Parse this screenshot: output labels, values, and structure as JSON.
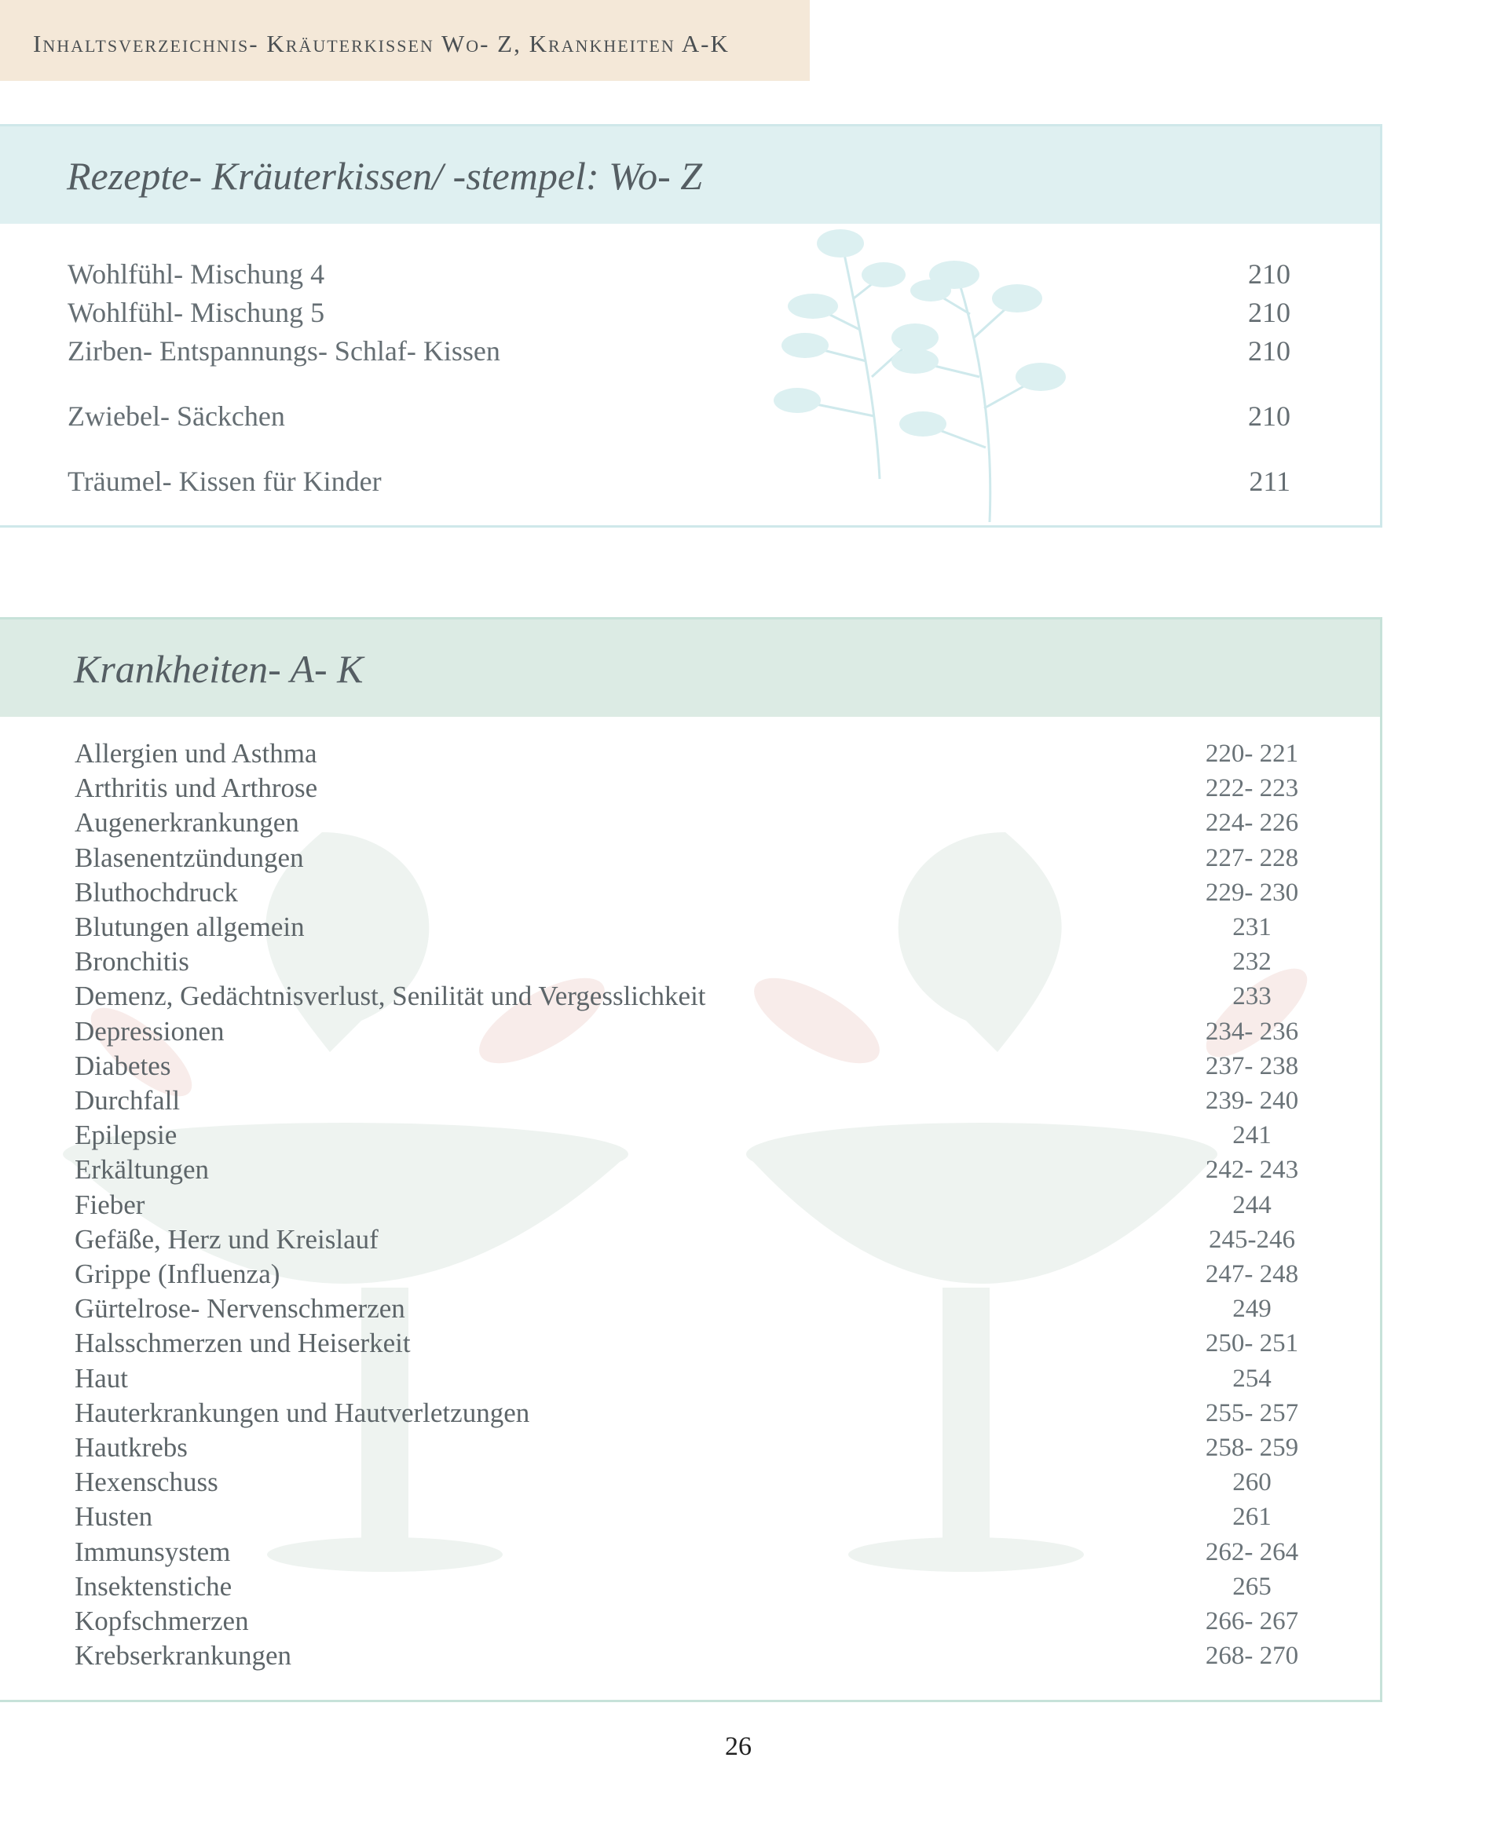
{
  "header": {
    "running_title": "Inhaltsverzeichnis- Kräuterkissen Wo- Z, Krankheiten A-K"
  },
  "section1": {
    "title": "Rezepte- Kräuterkissen/ -stempel: Wo- Z",
    "items": [
      {
        "title": "Wohlfühl- Mischung 4",
        "page": "210"
      },
      {
        "title": "Wohlfühl- Mischung 5",
        "page": "210"
      },
      {
        "title": "Zirben- Entspannungs- Schlaf- Kissen",
        "page": "210"
      },
      {
        "title": "Zwiebel- Säckchen",
        "page": "210"
      },
      {
        "title": "Träumel- Kissen für Kinder",
        "page": "211"
      }
    ]
  },
  "section2": {
    "title": "Krankheiten- A- K",
    "items": [
      {
        "title": "Allergien und Asthma",
        "page": "220- 221"
      },
      {
        "title": "Arthritis und Arthrose",
        "page": "222- 223"
      },
      {
        "title": "Augenerkrankungen",
        "page": "224- 226"
      },
      {
        "title": "Blasenentzündungen",
        "page": "227- 228"
      },
      {
        "title": "Bluthochdruck",
        "page": "229- 230"
      },
      {
        "title": "Blutungen allgemein",
        "page": "231"
      },
      {
        "title": "Bronchitis",
        "page": "232"
      },
      {
        "title": "Demenz, Gedächtnisverlust, Senilität und Vergesslichkeit",
        "page": "233"
      },
      {
        "title": "Depressionen",
        "page": "234- 236"
      },
      {
        "title": "Diabetes",
        "page": "237- 238"
      },
      {
        "title": "Durchfall",
        "page": "239- 240"
      },
      {
        "title": "Epilepsie",
        "page": "241"
      },
      {
        "title": "Erkältungen",
        "page": "242- 243"
      },
      {
        "title": "Fieber",
        "page": "244"
      },
      {
        "title": "Gefäße, Herz und Kreislauf",
        "page": "245-246"
      },
      {
        "title": "Grippe (Influenza)",
        "page": "247- 248"
      },
      {
        "title": "Gürtelrose- Nervenschmerzen",
        "page": "249"
      },
      {
        "title": "Halsschmerzen und Heiserkeit",
        "page": "250- 251"
      },
      {
        "title": "Haut",
        "page": "254"
      },
      {
        "title": "Hauterkrankungen und Hautverletzungen",
        "page": "255- 257"
      },
      {
        "title": "Hautkrebs",
        "page": "258- 259"
      },
      {
        "title": "Hexenschuss",
        "page": "260"
      },
      {
        "title": "Husten",
        "page": "261"
      },
      {
        "title": "Immunsystem",
        "page": "262- 264"
      },
      {
        "title": "Insektenstiche",
        "page": "265"
      },
      {
        "title": "Kopfschmerzen",
        "page": "266- 267"
      },
      {
        "title": "Krebserkrankungen",
        "page": "268- 270"
      }
    ]
  },
  "footer": {
    "page_number": "26"
  },
  "colors": {
    "banner": "#f4e8d8",
    "section1_header": "#dff0f1",
    "section2_header": "#dcebe4"
  }
}
